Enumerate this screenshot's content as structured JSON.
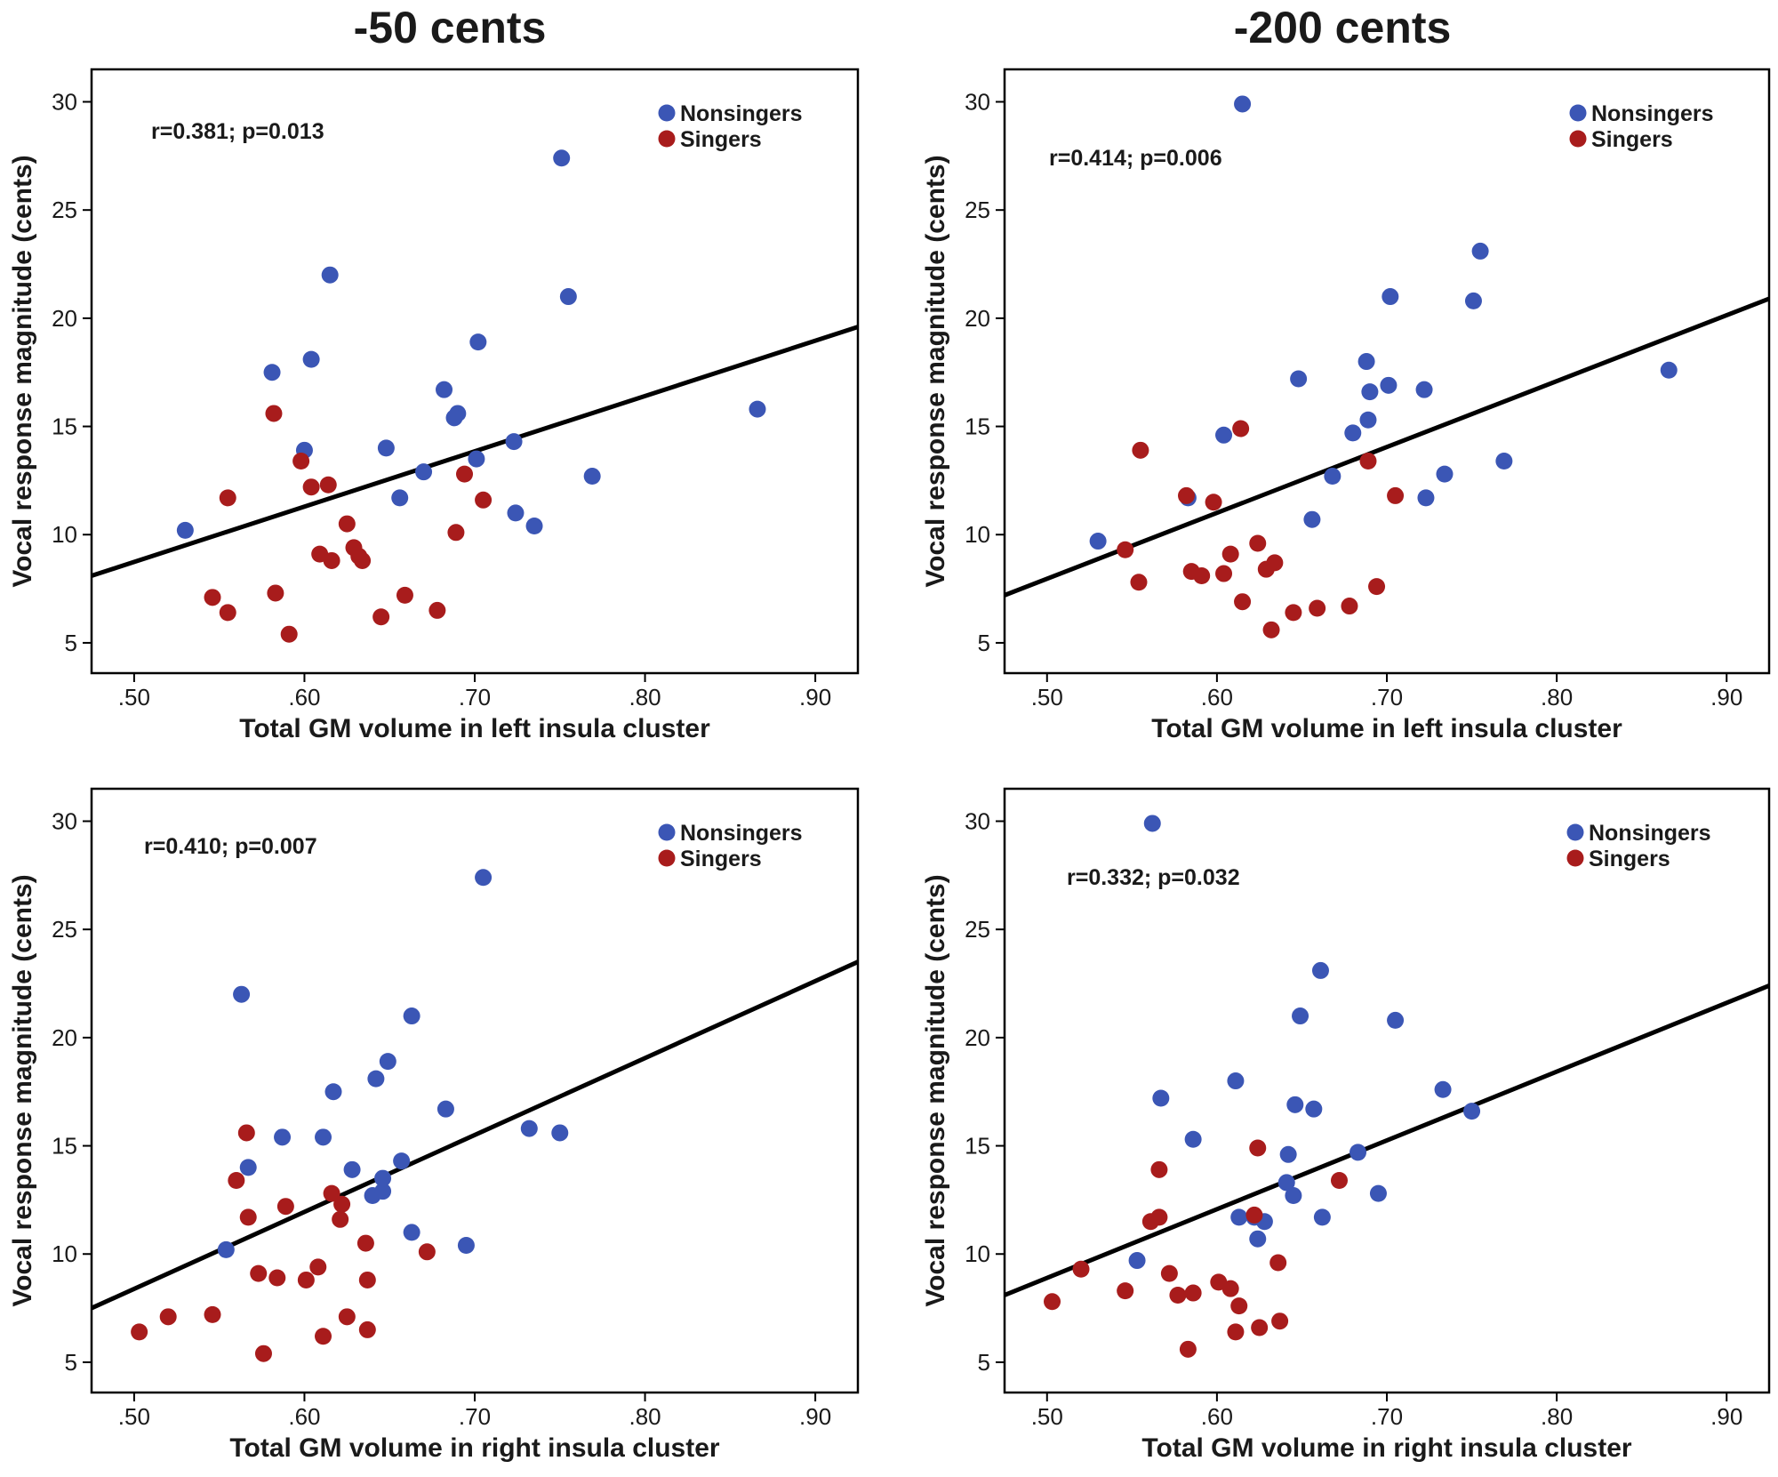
{
  "column_titles": [
    "-50 cents",
    "-200 cents"
  ],
  "colors": {
    "nonsingers": "#3b56b5",
    "singers": "#a81c1c",
    "line": "#000000",
    "axis": "#000000"
  },
  "chart_data": [
    {
      "type": "scatter",
      "column_title": "-50 cents",
      "xlabel": "Total GM volume in left insula cluster",
      "ylabel": "Vocal response magnitude (cents)",
      "xlim": [
        0.475,
        0.925
      ],
      "ylim": [
        3.6,
        31.5
      ],
      "xticks": [
        0.5,
        0.6,
        0.7,
        0.8,
        0.9
      ],
      "xtick_labels": [
        ".50",
        ".60",
        ".70",
        ".80",
        ".90"
      ],
      "yticks": [
        5,
        10,
        15,
        20,
        25,
        30
      ],
      "ytick_labels": [
        "5",
        "10",
        "15",
        "20",
        "25",
        "30"
      ],
      "annotation": "r=0.381; p=0.013",
      "legend": [
        "Nonsingers",
        "Singers"
      ],
      "legend_position": "top-right",
      "fit_line": {
        "x": [
          0.475,
          0.925
        ],
        "y": [
          8.1,
          19.6
        ]
      },
      "series": [
        {
          "name": "Nonsingers",
          "color": "#3b56b5",
          "x": [
            0.53,
            0.581,
            0.604,
            0.615,
            0.6,
            0.648,
            0.656,
            0.67,
            0.682,
            0.69,
            0.688,
            0.702,
            0.701,
            0.723,
            0.724,
            0.735,
            0.751,
            0.755,
            0.769,
            0.866
          ],
          "y": [
            10.2,
            17.5,
            18.1,
            22.0,
            13.9,
            14.0,
            11.7,
            12.9,
            16.7,
            15.6,
            15.4,
            18.9,
            13.5,
            14.3,
            11.0,
            10.4,
            27.4,
            21.0,
            12.7,
            15.8
          ]
        },
        {
          "name": "Singers",
          "color": "#a81c1c",
          "x": [
            0.546,
            0.555,
            0.555,
            0.582,
            0.583,
            0.591,
            0.598,
            0.604,
            0.609,
            0.614,
            0.616,
            0.625,
            0.629,
            0.632,
            0.634,
            0.645,
            0.659,
            0.678,
            0.689,
            0.694,
            0.705
          ],
          "y": [
            7.1,
            11.7,
            6.4,
            15.6,
            7.3,
            5.4,
            13.4,
            12.2,
            9.1,
            12.3,
            8.8,
            10.5,
            9.4,
            9.0,
            8.8,
            6.2,
            7.2,
            6.5,
            10.1,
            12.8,
            11.6
          ]
        }
      ]
    },
    {
      "type": "scatter",
      "column_title": "-200 cents",
      "xlabel": "Total GM volume in left insula cluster",
      "ylabel": "Vocal response magnitude (cents)",
      "xlim": [
        0.475,
        0.925
      ],
      "ylim": [
        3.6,
        31.5
      ],
      "xticks": [
        0.5,
        0.6,
        0.7,
        0.8,
        0.9
      ],
      "xtick_labels": [
        ".50",
        ".60",
        ".70",
        ".80",
        ".90"
      ],
      "yticks": [
        5,
        10,
        15,
        20,
        25,
        30
      ],
      "ytick_labels": [
        "5",
        "10",
        "15",
        "20",
        "25",
        "30"
      ],
      "annotation": "r=0.414; p=0.006",
      "legend": [
        "Nonsingers",
        "Singers"
      ],
      "legend_position": "top-right",
      "fit_line": {
        "x": [
          0.475,
          0.925
        ],
        "y": [
          7.2,
          20.9
        ]
      },
      "series": [
        {
          "name": "Nonsingers",
          "color": "#3b56b5",
          "x": [
            0.615,
            0.53,
            0.583,
            0.604,
            0.648,
            0.656,
            0.668,
            0.68,
            0.688,
            0.69,
            0.689,
            0.701,
            0.702,
            0.722,
            0.723,
            0.734,
            0.751,
            0.755,
            0.769,
            0.866
          ],
          "y": [
            29.9,
            9.7,
            11.7,
            14.6,
            17.2,
            10.7,
            12.7,
            14.7,
            18.0,
            16.6,
            15.3,
            16.9,
            21.0,
            16.7,
            11.7,
            12.8,
            20.8,
            23.1,
            13.4,
            17.6
          ],
          "y_note": ""
        },
        {
          "name": "Singers",
          "color": "#a81c1c",
          "x": [
            0.546,
            0.555,
            0.554,
            0.582,
            0.585,
            0.591,
            0.598,
            0.604,
            0.608,
            0.614,
            0.615,
            0.624,
            0.629,
            0.632,
            0.634,
            0.645,
            0.659,
            0.678,
            0.689,
            0.694,
            0.705
          ],
          "y": [
            9.3,
            13.9,
            7.8,
            11.8,
            8.3,
            8.1,
            11.5,
            8.2,
            9.1,
            14.9,
            6.9,
            9.6,
            8.4,
            5.6,
            8.7,
            6.4,
            6.6,
            6.7,
            13.4,
            7.6,
            11.8
          ]
        }
      ]
    },
    {
      "type": "scatter",
      "column_title": "-50 cents",
      "xlabel": "Total GM volume in right insula cluster",
      "ylabel": "Vocal response magnitude (cents)",
      "xlim": [
        0.475,
        0.925
      ],
      "ylim": [
        3.6,
        31.5
      ],
      "xticks": [
        0.5,
        0.6,
        0.7,
        0.8,
        0.9
      ],
      "xtick_labels": [
        ".50",
        ".60",
        ".70",
        ".80",
        ".90"
      ],
      "yticks": [
        5,
        10,
        15,
        20,
        25,
        30
      ],
      "ytick_labels": [
        "5",
        "10",
        "15",
        "20",
        "25",
        "30"
      ],
      "annotation": "r=0.410; p=0.007",
      "legend": [
        "Nonsingers",
        "Singers"
      ],
      "legend_position": "top-right",
      "fit_line": {
        "x": [
          0.475,
          0.925
        ],
        "y": [
          7.5,
          23.5
        ]
      },
      "series": [
        {
          "name": "Nonsingers",
          "color": "#3b56b5",
          "x": [
            0.554,
            0.563,
            0.567,
            0.587,
            0.611,
            0.617,
            0.628,
            0.64,
            0.642,
            0.646,
            0.646,
            0.649,
            0.657,
            0.663,
            0.663,
            0.683,
            0.695,
            0.705,
            0.732,
            0.75
          ],
          "y": [
            10.2,
            22.0,
            14.0,
            15.4,
            15.4,
            17.5,
            13.9,
            12.7,
            18.1,
            12.9,
            13.5,
            18.9,
            14.3,
            21.0,
            11.0,
            16.7,
            10.4,
            27.4,
            15.8,
            15.6
          ]
        },
        {
          "name": "Singers",
          "color": "#a81c1c",
          "x": [
            0.503,
            0.52,
            0.546,
            0.56,
            0.566,
            0.567,
            0.573,
            0.576,
            0.584,
            0.589,
            0.601,
            0.608,
            0.611,
            0.616,
            0.621,
            0.622,
            0.625,
            0.636,
            0.637,
            0.637,
            0.672
          ],
          "y": [
            6.4,
            7.1,
            7.2,
            13.4,
            15.6,
            11.7,
            9.1,
            5.4,
            8.9,
            12.2,
            8.8,
            9.4,
            6.2,
            12.8,
            11.6,
            12.3,
            7.1,
            10.5,
            8.8,
            6.5,
            10.1
          ]
        }
      ]
    },
    {
      "type": "scatter",
      "column_title": "-200 cents",
      "xlabel": "Total GM volume in right insula cluster",
      "ylabel": "Vocal response magnitude (cents)",
      "xlim": [
        0.475,
        0.925
      ],
      "ylim": [
        3.6,
        31.5
      ],
      "xticks": [
        0.5,
        0.6,
        0.7,
        0.8,
        0.9
      ],
      "xtick_labels": [
        ".50",
        ".60",
        ".70",
        ".80",
        ".90"
      ],
      "yticks": [
        5,
        10,
        15,
        20,
        25,
        30
      ],
      "ytick_labels": [
        "5",
        "10",
        "15",
        "20",
        "25",
        "30"
      ],
      "annotation": "r=0.332; p=0.032",
      "legend": [
        "Nonsingers",
        "Singers"
      ],
      "legend_position": "top-right",
      "fit_line": {
        "x": [
          0.475,
          0.925
        ],
        "y": [
          8.1,
          22.4
        ]
      },
      "series": [
        {
          "name": "Nonsingers",
          "color": "#3b56b5",
          "x": [
            0.562,
            0.553,
            0.567,
            0.586,
            0.611,
            0.613,
            0.622,
            0.624,
            0.628,
            0.641,
            0.642,
            0.645,
            0.646,
            0.649,
            0.657,
            0.661,
            0.662,
            0.683,
            0.695,
            0.705,
            0.733,
            0.75
          ],
          "y": [
            29.9,
            9.7,
            17.2,
            15.3,
            18.0,
            11.7,
            11.7,
            10.7,
            11.5,
            13.3,
            14.6,
            12.7,
            16.9,
            21.0,
            16.7,
            23.1,
            11.7,
            14.7,
            12.8,
            20.8,
            17.6,
            16.6
          ]
        },
        {
          "name": "Singers",
          "color": "#a81c1c",
          "x": [
            0.503,
            0.52,
            0.546,
            0.561,
            0.566,
            0.566,
            0.572,
            0.577,
            0.583,
            0.586,
            0.601,
            0.608,
            0.611,
            0.613,
            0.622,
            0.624,
            0.625,
            0.636,
            0.637,
            0.672
          ],
          "y": [
            7.8,
            9.3,
            8.3,
            11.5,
            11.7,
            13.9,
            9.1,
            8.1,
            5.6,
            8.2,
            8.7,
            8.4,
            6.4,
            7.6,
            11.8,
            14.9,
            6.6,
            9.6,
            6.9,
            13.4
          ]
        }
      ]
    }
  ]
}
